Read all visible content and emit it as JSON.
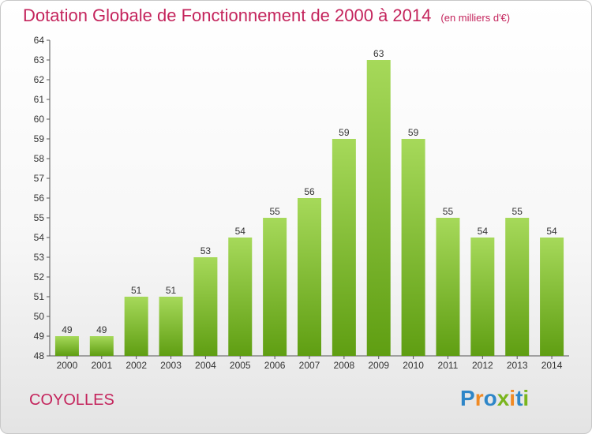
{
  "header": {
    "title": "Dotation Globale de Fonctionnement de 2000 à 2014",
    "unit": "(en milliers d'€)"
  },
  "footer": {
    "city": "COYOLLES",
    "logo": [
      "P",
      "r",
      "o",
      "x",
      "i",
      "t",
      "i"
    ]
  },
  "colors": {
    "title": "#c4245c",
    "bar_top": "#a6d95a",
    "bar_bottom": "#5f9e12",
    "logo": [
      "#2e86c8",
      "#f08a24",
      "#2e86c8",
      "#7ab51d",
      "#f08a24",
      "#2e86c8",
      "#7ab51d"
    ]
  },
  "chart_data": {
    "type": "bar",
    "title": "Dotation Globale de Fonctionnement de 2000 à 2014",
    "subtitle": "(en milliers d'€)",
    "xlabel": "",
    "ylabel": "",
    "categories": [
      "2000",
      "2001",
      "2002",
      "2003",
      "2004",
      "2005",
      "2006",
      "2007",
      "2008",
      "2009",
      "2010",
      "2011",
      "2012",
      "2013",
      "2014"
    ],
    "values": [
      49,
      49,
      51,
      51,
      53,
      54,
      55,
      56,
      59,
      63,
      59,
      55,
      54,
      55,
      54
    ],
    "ylim": [
      48,
      64
    ],
    "yticks": [
      48,
      49,
      50,
      51,
      52,
      53,
      54,
      55,
      56,
      57,
      58,
      59,
      60,
      61,
      62,
      63,
      64
    ],
    "grid": false
  }
}
